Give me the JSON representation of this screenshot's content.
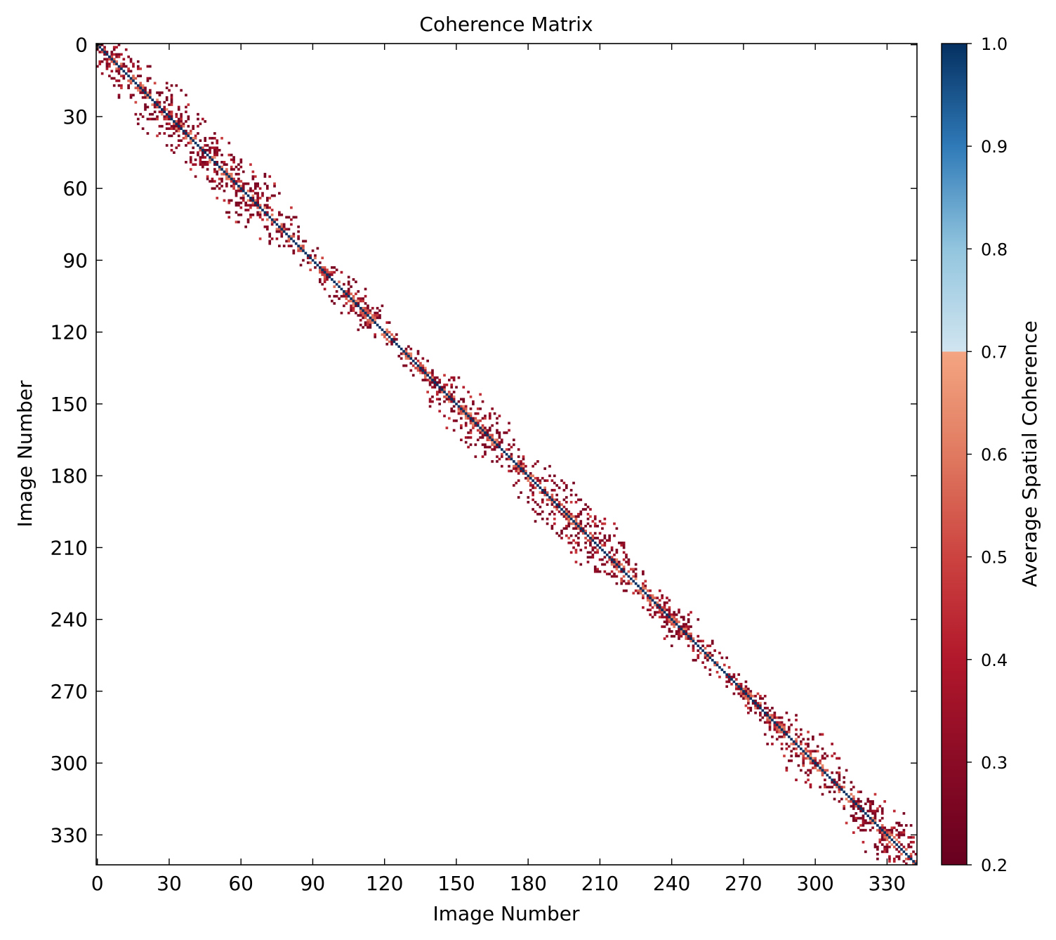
{
  "chart_data": {
    "type": "heatmap",
    "title": "Coherence Matrix",
    "xlabel": "Image Number",
    "ylabel": "Image Number",
    "n_images": 343,
    "x_ticks": [
      0,
      30,
      60,
      90,
      120,
      150,
      180,
      210,
      240,
      270,
      300,
      330
    ],
    "y_ticks": [
      0,
      30,
      60,
      90,
      120,
      150,
      180,
      210,
      240,
      270,
      300,
      330
    ],
    "x_tick_labels": [
      "0",
      "30",
      "60",
      "90",
      "120",
      "150",
      "180",
      "210",
      "240",
      "270",
      "300",
      "330"
    ],
    "y_tick_labels": [
      "0",
      "30",
      "60",
      "90",
      "120",
      "150",
      "180",
      "210",
      "240",
      "270",
      "300",
      "330"
    ],
    "diagonal_value": 1.0,
    "off_diagonal_value_range": [
      0.25,
      0.7
    ],
    "near_diagonal_value_range": [
      0.5,
      0.65
    ],
    "mask_below": 0.25,
    "typical_band_half_width_images": 12,
    "band_half_width_range_images": [
      4,
      18
    ],
    "colorbar": {
      "label": "Average Spatial Coherence",
      "vmin": 0.2,
      "vmax": 1.0,
      "ticks": [
        0.2,
        0.3,
        0.4,
        0.5,
        0.6,
        0.7,
        0.8,
        0.9,
        1.0
      ],
      "tick_labels": [
        "0.2",
        "0.3",
        "0.4",
        "0.5",
        "0.6",
        "0.7",
        "0.8",
        "0.9",
        "1.0"
      ],
      "colormap": "RdBu (diverging)",
      "stops": [
        {
          "v": 0.2,
          "color": "#67001f"
        },
        {
          "v": 0.3,
          "color": "#8a0b25"
        },
        {
          "v": 0.4,
          "color": "#b2182b"
        },
        {
          "v": 0.5,
          "color": "#cc4340"
        },
        {
          "v": 0.6,
          "color": "#e07a60"
        },
        {
          "v": 0.7,
          "color": "#f4a582"
        },
        {
          "v": 0.7,
          "color": "#d1e5f0"
        },
        {
          "v": 0.8,
          "color": "#92c5de"
        },
        {
          "v": 0.9,
          "color": "#2f7ab8"
        },
        {
          "v": 1.0,
          "color": "#053061"
        }
      ]
    },
    "grid": false,
    "background_color": "#ffffff"
  }
}
